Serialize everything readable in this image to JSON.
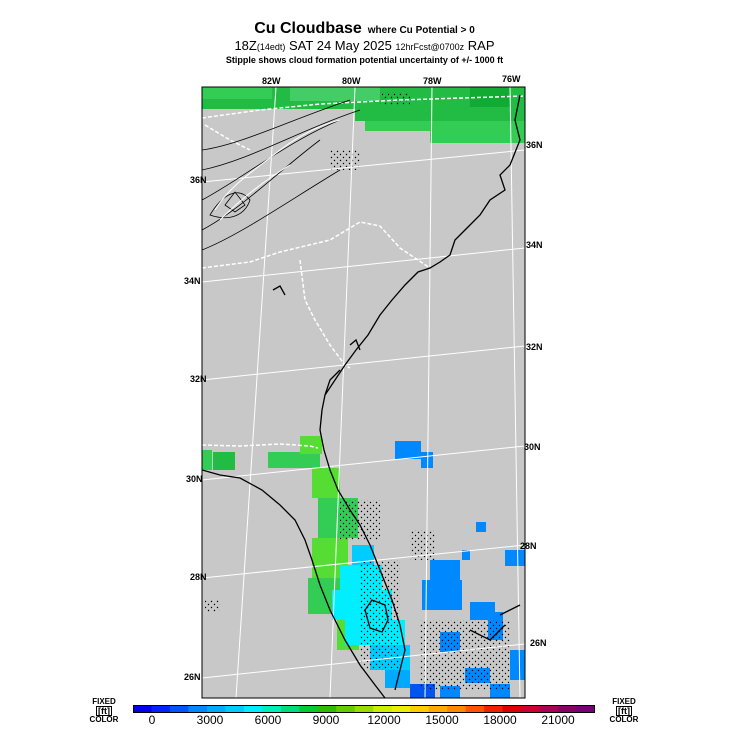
{
  "header": {
    "title": "Cu Cloudbase",
    "title_suffix": "where Cu Potential > 0",
    "line2_main": "18Z",
    "line2_local": "(14edt)",
    "line2_date": "SAT 24 May 2025",
    "line2_fcst": "12hrFcst@0700z",
    "line2_model": "RAP",
    "line3": "Stipple shows cloud formation potential uncertainty of +/-  1000 ft"
  },
  "map": {
    "lon_labels": [
      "82W",
      "80W",
      "78W",
      "76W"
    ],
    "lat_labels_left": [
      "36N",
      "34N",
      "32N",
      "30N",
      "28N",
      "26N"
    ],
    "lat_labels_right": [
      "36N",
      "34N",
      "32N",
      "30N",
      "28N",
      "26N"
    ],
    "colors": {
      "land": "#c8c8c8",
      "green_dark": "#22bb44",
      "green_mid": "#33cc55",
      "green_light": "#55dd33",
      "cyan": "#00eeff",
      "blue": "#0088ff",
      "blue_dark": "#0055ee"
    }
  },
  "colorbar": {
    "left_note": [
      "FIXED",
      "[ft]",
      "COLOR"
    ],
    "right_note": [
      "FIXED",
      "[ft]",
      "COLOR"
    ],
    "ticks": [
      "0",
      "3000",
      "6000",
      "9000",
      "12000",
      "15000",
      "18000",
      "21000"
    ],
    "colors": [
      "#0000ee",
      "#0022ff",
      "#0055ff",
      "#0088ff",
      "#00aaff",
      "#00ccff",
      "#00eeff",
      "#00eebb",
      "#00dd77",
      "#00cc33",
      "#33bb00",
      "#66cc00",
      "#99dd00",
      "#ccee00",
      "#eeee00",
      "#ffcc00",
      "#ffaa00",
      "#ff8800",
      "#ff5500",
      "#ee2200",
      "#dd0000",
      "#cc0033",
      "#aa0055",
      "#880066",
      "#770077"
    ]
  }
}
